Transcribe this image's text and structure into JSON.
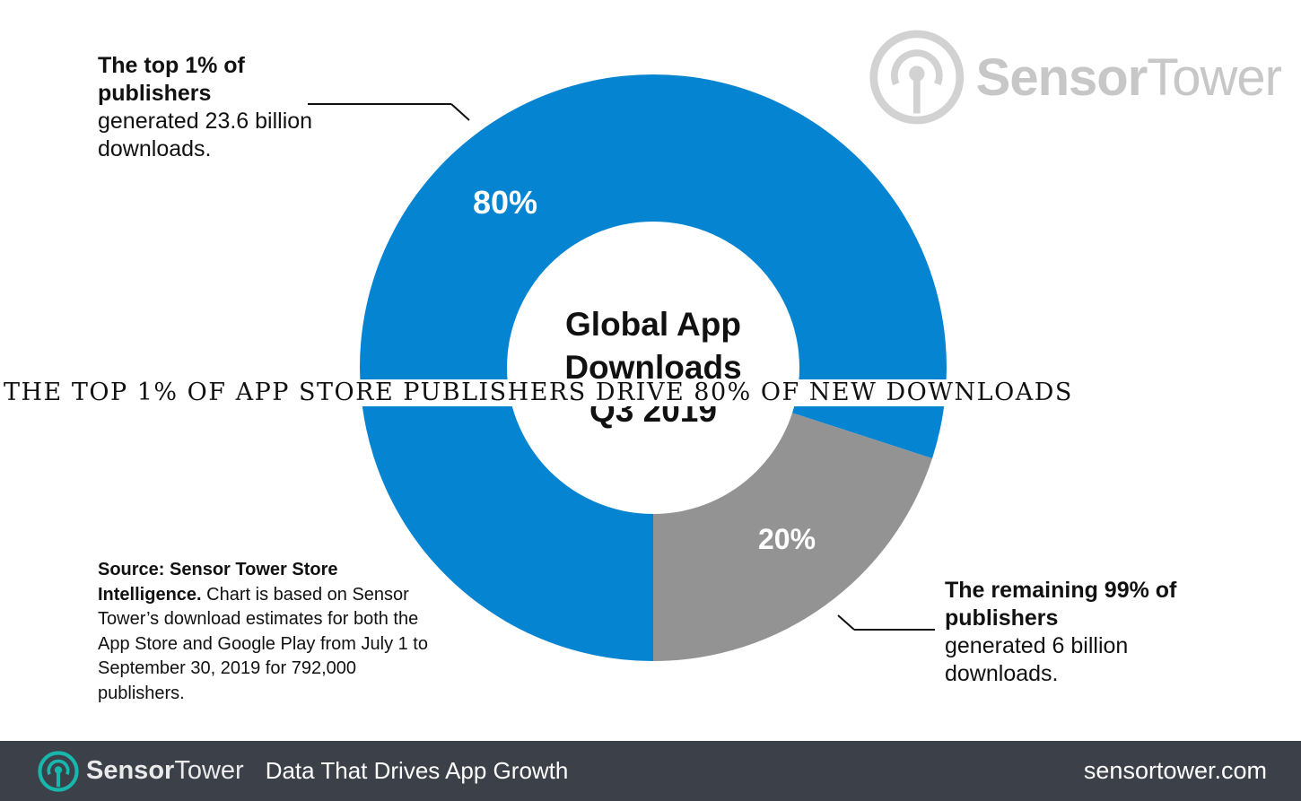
{
  "chart_data": {
    "type": "pie",
    "title": "Global App Downloads Q3 2019",
    "center_label": [
      "Global App",
      "Downloads",
      "Q3 2019"
    ],
    "slices": [
      {
        "label": "80%",
        "value": 80,
        "color": "#0484d1"
      },
      {
        "label": "20%",
        "value": 20,
        "color": "#939393"
      }
    ]
  },
  "callouts": {
    "top": {
      "bold": "The top 1% of publishers",
      "text": "generated 23.6 billion downloads."
    },
    "bottom": {
      "bold": "The remaining 99% of publishers",
      "text": "generated 6 billion downloads."
    }
  },
  "source": {
    "bold": "Source: Sensor Tower Store Intelligence.",
    "text": "Chart is based on Sensor Tower’s download estimates for both the App Store and Google Play from July 1 to September 30, 2019 for 792,000 publishers."
  },
  "watermark": {
    "brand_bold": "Sensor",
    "brand_light": "Tower",
    "icon": "sensor-tower-logo-icon"
  },
  "banner": {
    "text": "The top 1% of App Store publishers drive 80% of new downloads"
  },
  "footer": {
    "brand_bold": "Sensor",
    "brand_light": "Tower",
    "tagline": "Data That Drives App Growth",
    "url": "sensortower.com",
    "icon": "sensor-tower-logo-icon"
  },
  "colors": {
    "primary_blue": "#0484d1",
    "grey": "#939393",
    "footer_bg": "#3c4049",
    "logo_teal": "#17b7ad"
  }
}
